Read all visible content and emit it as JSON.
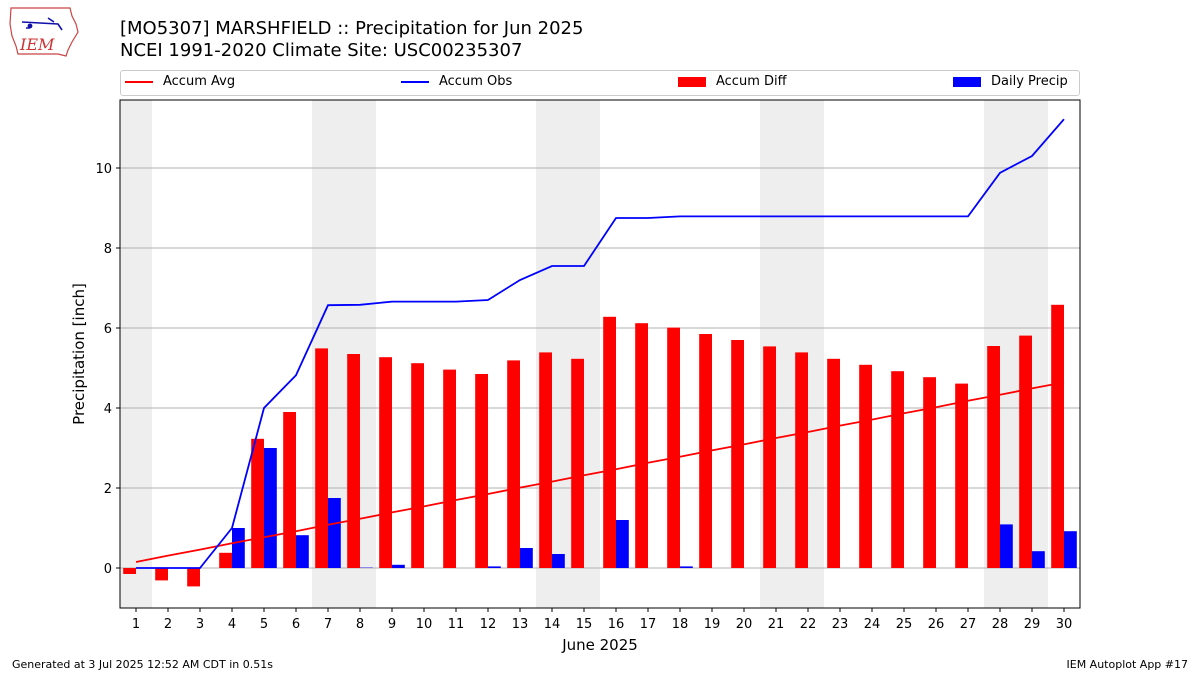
{
  "header": {
    "title_line1": "[MO5307] MARSHFIELD :: Precipitation for Jun 2025",
    "title_line2": "NCEI 1991-2020 Climate Site: USC00235307"
  },
  "logo": {
    "text": "IEM",
    "icon": "iem-logo-icon"
  },
  "legend": {
    "placement": "top",
    "items": [
      {
        "label": "Accum Avg",
        "kind": "line",
        "color": "#ff0000"
      },
      {
        "label": "Accum Obs",
        "kind": "line",
        "color": "#0000ff"
      },
      {
        "label": "Accum Diff",
        "kind": "bar",
        "color": "#ff0000"
      },
      {
        "label": "Daily Precip",
        "kind": "bar",
        "color": "#0000ff"
      }
    ]
  },
  "chart_data": {
    "type": "bar",
    "xlabel": "June 2025",
    "ylabel": "Precipitation [inch]",
    "ylim": [
      -1,
      11.7
    ],
    "yticks": [
      0,
      2,
      4,
      6,
      8,
      10
    ],
    "grid": "y",
    "x": [
      1,
      2,
      3,
      4,
      5,
      6,
      7,
      8,
      9,
      10,
      11,
      12,
      13,
      14,
      15,
      16,
      17,
      18,
      19,
      20,
      21,
      22,
      23,
      24,
      25,
      26,
      27,
      28,
      29,
      30
    ],
    "weekend_days": [
      1,
      7,
      8,
      14,
      15,
      21,
      22,
      28,
      29
    ],
    "colors": {
      "avg": "#ff0000",
      "obs": "#0000ff",
      "diff": "#ff0000",
      "daily": "#0000ff",
      "weekend": "#eeeeee",
      "grid": "#b0b0b0"
    },
    "series": [
      {
        "name": "Accum Avg",
        "kind": "line",
        "values": [
          0.15,
          0.31,
          0.46,
          0.62,
          0.77,
          0.92,
          1.08,
          1.23,
          1.39,
          1.54,
          1.7,
          1.85,
          2.01,
          2.16,
          2.32,
          2.47,
          2.63,
          2.78,
          2.94,
          3.09,
          3.25,
          3.4,
          3.56,
          3.71,
          3.87,
          4.02,
          4.18,
          4.33,
          4.49,
          4.64
        ]
      },
      {
        "name": "Accum Obs",
        "kind": "line",
        "values": [
          0,
          0,
          0,
          1.0,
          4.0,
          4.82,
          6.57,
          6.58,
          6.66,
          6.66,
          6.66,
          6.7,
          7.2,
          7.55,
          7.55,
          8.75,
          8.75,
          8.79,
          8.79,
          8.79,
          8.79,
          8.79,
          8.79,
          8.79,
          8.79,
          8.79,
          8.79,
          9.88,
          10.3,
          11.22
        ]
      },
      {
        "name": "Accum Diff",
        "kind": "bar",
        "values": [
          -0.15,
          -0.31,
          -0.46,
          0.38,
          3.23,
          3.9,
          5.49,
          5.35,
          5.27,
          5.12,
          4.96,
          4.85,
          5.19,
          5.39,
          5.23,
          6.28,
          6.12,
          6.01,
          5.85,
          5.7,
          5.54,
          5.39,
          5.23,
          5.08,
          4.92,
          4.77,
          4.61,
          5.55,
          5.81,
          6.58
        ]
      },
      {
        "name": "Daily Precip",
        "kind": "bar",
        "values": [
          0,
          0,
          0,
          1.0,
          3.0,
          0.82,
          1.75,
          0.01,
          0.08,
          0,
          0,
          0.04,
          0.5,
          0.35,
          0,
          1.2,
          0,
          0.04,
          0,
          0,
          0,
          0,
          0,
          0,
          0,
          0,
          0,
          1.09,
          0.42,
          0.92
        ]
      }
    ]
  },
  "footer": {
    "generated": "Generated at 3 Jul 2025 12:52 AM CDT in 0.51s",
    "app": "IEM Autoplot App #17"
  }
}
